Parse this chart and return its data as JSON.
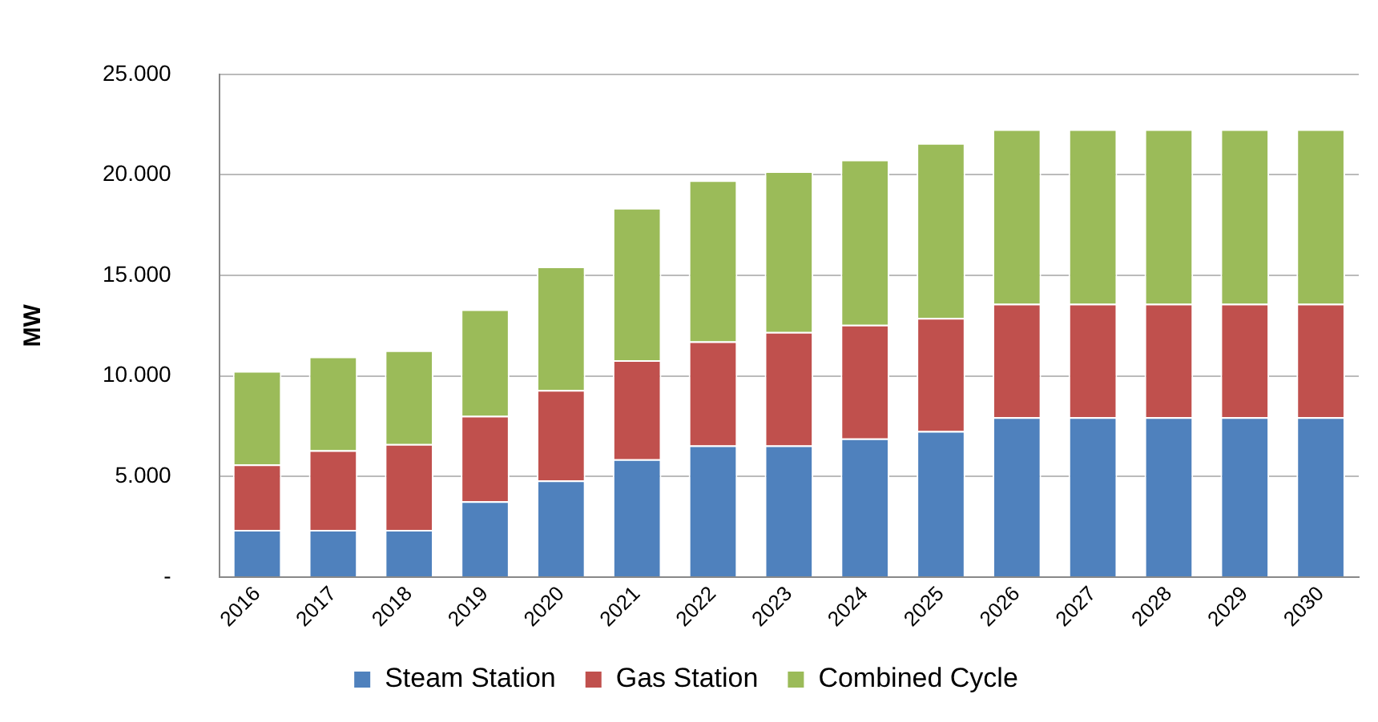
{
  "chart_data": {
    "type": "bar",
    "ylabel": "MW",
    "stacked": true,
    "categories": [
      "2016",
      "2017",
      "2018",
      "2019",
      "2020",
      "2021",
      "2022",
      "2023",
      "2024",
      "2025",
      "2026",
      "2027",
      "2028",
      "2029",
      "2030"
    ],
    "series": [
      {
        "name": "Steam Station",
        "color": "#4f81bd",
        "values": [
          2350,
          2350,
          2350,
          3770,
          4810,
          5860,
          6550,
          6550,
          6900,
          7260,
          7950,
          7950,
          7950,
          7950,
          7950
        ]
      },
      {
        "name": "Gas Station",
        "color": "#c0504d",
        "values": [
          3250,
          3960,
          4270,
          4250,
          4490,
          4930,
          5170,
          5640,
          5650,
          5620,
          5640,
          5640,
          5640,
          5640,
          5640
        ]
      },
      {
        "name": "Combined Cycle",
        "color": "#9bbb59",
        "values": [
          4650,
          4650,
          4650,
          5290,
          6140,
          7570,
          8010,
          7990,
          8200,
          8700,
          8680,
          8680,
          8680,
          8680,
          8680
        ]
      }
    ],
    "ylim": [
      0,
      25000
    ],
    "yticks": [
      {
        "value": 0,
        "label": "-"
      },
      {
        "value": 5000,
        "label": "5.000"
      },
      {
        "value": 10000,
        "label": "10.000"
      },
      {
        "value": 15000,
        "label": "15.000"
      },
      {
        "value": 20000,
        "label": "20.000"
      },
      {
        "value": 25000,
        "label": "25.000"
      }
    ],
    "grid": "y",
    "legend": "bottom"
  }
}
